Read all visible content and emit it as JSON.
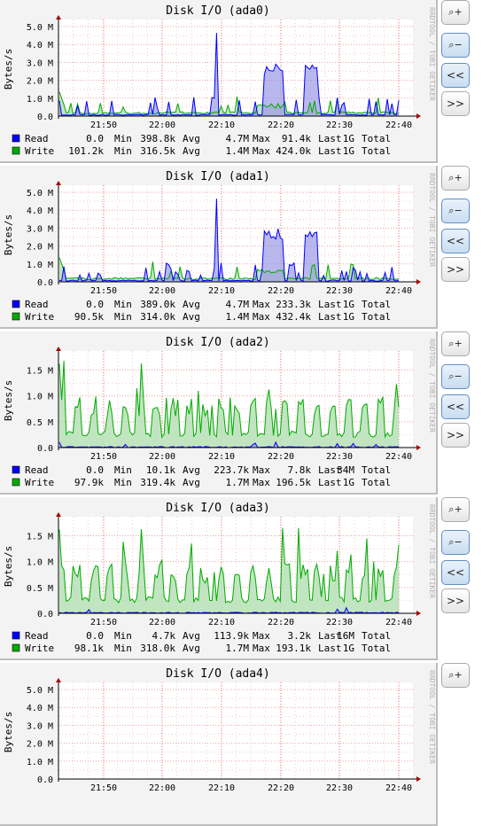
{
  "charts": [
    {
      "title": "Disk I/O (ada0)",
      "ylabel": "Bytes/s",
      "side_text": "RRDTOOL / TOBI OETIKER",
      "y_ticks": [
        "0.0",
        "1.0 M",
        "2.0 M",
        "3.0 M",
        "4.0 M",
        "5.0 M"
      ],
      "y_max": 5.2,
      "x_ticks": [
        "21:50",
        "22:00",
        "22:10",
        "22:20",
        "22:30",
        "22:40"
      ],
      "legend": [
        {
          "name": "Read",
          "color": "#0000ff",
          "min": "0.0",
          "avg": "398.8k",
          "max": "4.7M",
          "last": "91.4k",
          "total": "1G"
        },
        {
          "name": "Write",
          "color": "#00aa00",
          "min": "101.2k",
          "avg": "316.5k",
          "max": "1.4M",
          "last": "424.0k",
          "total": "1G"
        }
      ]
    },
    {
      "title": "Disk I/O (ada1)",
      "ylabel": "Bytes/s",
      "side_text": "RRDTOOL / TOBI OETIKER",
      "y_ticks": [
        "0.0",
        "1.0 M",
        "2.0 M",
        "3.0 M",
        "4.0 M",
        "5.0 M"
      ],
      "y_max": 5.2,
      "x_ticks": [
        "21:50",
        "22:00",
        "22:10",
        "22:20",
        "22:30",
        "22:40"
      ],
      "legend": [
        {
          "name": "Read",
          "color": "#0000ff",
          "min": "0.0",
          "avg": "389.0k",
          "max": "4.7M",
          "last": "233.3k",
          "total": "1G"
        },
        {
          "name": "Write",
          "color": "#00aa00",
          "min": "90.5k",
          "avg": "314.0k",
          "max": "1.4M",
          "last": "432.4k",
          "total": "1G"
        }
      ]
    },
    {
      "title": "Disk I/O (ada2)",
      "ylabel": "Bytes/s",
      "side_text": "RRDTOOL / TOBI OETIKER",
      "y_ticks": [
        "0.0",
        "0.5 M",
        "1.0 M",
        "1.5 M"
      ],
      "y_max": 1.8,
      "x_ticks": [
        "21:50",
        "22:00",
        "22:10",
        "22:20",
        "22:30",
        "22:40"
      ],
      "legend": [
        {
          "name": "Read",
          "color": "#0000ff",
          "min": "0.0",
          "avg": "10.1k",
          "max": "223.7k",
          "last": "7.8k",
          "total": "34M"
        },
        {
          "name": "Write",
          "color": "#00aa00",
          "min": "97.9k",
          "avg": "319.4k",
          "max": "1.7M",
          "last": "196.5k",
          "total": "1G"
        }
      ]
    },
    {
      "title": "Disk I/O (ada3)",
      "ylabel": "Bytes/s",
      "side_text": "RRDTOOL / TOBI OETIKER",
      "y_ticks": [
        "0.0",
        "0.5 M",
        "1.0 M",
        "1.5 M"
      ],
      "y_max": 1.8,
      "x_ticks": [
        "21:50",
        "22:00",
        "22:10",
        "22:20",
        "22:30",
        "22:40"
      ],
      "legend": [
        {
          "name": "Read",
          "color": "#0000ff",
          "min": "0.0",
          "avg": "4.7k",
          "max": "113.9k",
          "last": "3.2k",
          "total": "16M"
        },
        {
          "name": "Write",
          "color": "#00aa00",
          "min": "98.1k",
          "avg": "318.0k",
          "max": "1.7M",
          "last": "193.1k",
          "total": "1G"
        }
      ]
    },
    {
      "title": "Disk I/O (ada4)",
      "ylabel": "Bytes/s",
      "side_text": "RRDTOOL / TOBI OETIKER",
      "y_ticks": [
        "0.0",
        "1.0 M",
        "2.0 M",
        "3.0 M",
        "4.0 M",
        "5.0 M"
      ],
      "y_max": 5.2,
      "x_ticks": [
        "21:50",
        "22:00",
        "22:10",
        "22:20",
        "22:30",
        "22:40"
      ],
      "legend": []
    }
  ],
  "legend_labels": {
    "min": "Min",
    "avg": "Avg",
    "max": "Max",
    "last": "Last",
    "total": "Total"
  },
  "buttons": {
    "zoom_in": "+",
    "zoom_out": "−",
    "back": "<<",
    "forward": ">>"
  },
  "chart_data": [
    {
      "type": "area",
      "title": "Disk I/O (ada0)",
      "ylabel": "Bytes/s",
      "ylim": [
        0,
        5200000
      ],
      "x": [
        "21:50",
        "22:00",
        "22:10",
        "22:20",
        "22:30",
        "22:40"
      ],
      "series": [
        {
          "name": "Read",
          "values": [
            91400,
            398800,
            4700000,
            3000000,
            2900000,
            91400
          ]
        },
        {
          "name": "Write",
          "values": [
            101200,
            316500,
            1400000,
            700000,
            400000,
            424000
          ]
        }
      ]
    },
    {
      "type": "area",
      "title": "Disk I/O (ada1)",
      "ylabel": "Bytes/s",
      "ylim": [
        0,
        5200000
      ],
      "x": [
        "21:50",
        "22:00",
        "22:10",
        "22:20",
        "22:30",
        "22:40"
      ],
      "series": [
        {
          "name": "Read",
          "values": [
            233300,
            389000,
            4700000,
            3000000,
            2900000,
            233300
          ]
        },
        {
          "name": "Write",
          "values": [
            90500,
            314000,
            1400000,
            700000,
            400000,
            432400
          ]
        }
      ]
    },
    {
      "type": "area",
      "title": "Disk I/O (ada2)",
      "ylabel": "Bytes/s",
      "ylim": [
        0,
        1800000
      ],
      "x": [
        "21:50",
        "22:00",
        "22:10",
        "22:20",
        "22:30",
        "22:40"
      ],
      "series": [
        {
          "name": "Read",
          "values": [
            7800,
            10100,
            10100,
            223700,
            10100,
            7800
          ]
        },
        {
          "name": "Write",
          "values": [
            600000,
            319400,
            1700000,
            700000,
            500000,
            196500
          ]
        }
      ]
    },
    {
      "type": "area",
      "title": "Disk I/O (ada3)",
      "ylabel": "Bytes/s",
      "ylim": [
        0,
        1800000
      ],
      "x": [
        "21:50",
        "22:00",
        "22:10",
        "22:20",
        "22:30",
        "22:40"
      ],
      "series": [
        {
          "name": "Read",
          "values": [
            3200,
            4700,
            4700,
            113900,
            4700,
            3200
          ]
        },
        {
          "name": "Write",
          "values": [
            600000,
            318000,
            1700000,
            700000,
            500000,
            193100
          ]
        }
      ]
    }
  ]
}
